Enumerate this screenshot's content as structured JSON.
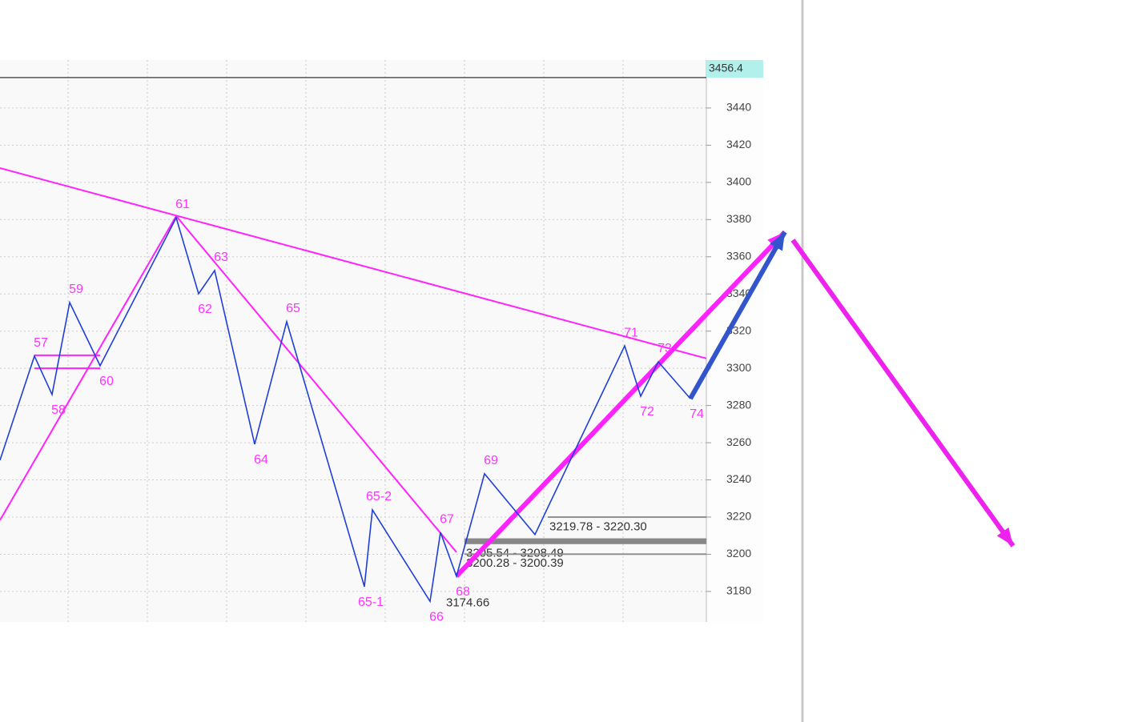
{
  "chart_data": {
    "type": "line",
    "xlim": [
      0,
      220.5
    ],
    "ylim": [
      3163.6,
      3465.8
    ],
    "xticks": [
      21.25,
      46,
      70.75,
      95.5,
      120.25,
      145,
      169.75,
      194.5
    ],
    "yticks": [
      3180,
      3200,
      3220,
      3240,
      3260,
      3280,
      3300,
      3320,
      3340,
      3360,
      3380,
      3400,
      3420,
      3440
    ],
    "grid": true,
    "top_label": 3456.4,
    "series": [
      {
        "color": "#1f3fd8",
        "x": [
          0,
          10.75,
          16.25,
          21.75,
          31.25,
          55,
          62,
          67,
          79.5,
          89.5,
          113.75,
          116.25,
          134.25,
          137.5,
          142.5,
          151.25,
          167,
          195,
          200,
          205.5,
          215.5
        ],
        "values": [
          3250.6,
          3306.6,
          3285.9,
          3335.4,
          3301.4,
          3381.0,
          3340.1,
          3352.6,
          3259.2,
          3325.1,
          3182.6,
          3223.9,
          3174.66,
          3211.8,
          3188.2,
          3243.3,
          3210.6,
          3312.1,
          3285.0,
          3303.5,
          3283.7
        ],
        "labels": [
          null,
          "57",
          "58",
          "59",
          "60",
          "61",
          "62",
          "63",
          "64",
          "65",
          "65-1",
          "65-2",
          "66",
          "67",
          "68",
          "69",
          null,
          "71",
          "72",
          "73",
          "74"
        ],
        "value_labels": [
          null,
          null,
          null,
          null,
          null,
          null,
          null,
          null,
          null,
          null,
          null,
          null,
          "3174.66",
          null,
          null,
          null,
          null,
          null,
          null,
          null,
          null
        ]
      }
    ],
    "trend_lines": [
      {
        "color": "#ff22ff",
        "x": [
          0,
          220.5
        ],
        "values": [
          3407.7,
          3305.3
        ]
      },
      {
        "color": "#ff22ff",
        "x": [
          0,
          55
        ],
        "values": [
          3218.3,
          3381.9
        ]
      },
      {
        "color": "#ff22ff",
        "x": [
          55,
          142.5
        ],
        "values": [
          3381.9,
          3201.1
        ]
      },
      {
        "color": "#ff22ff",
        "x": [
          10.75,
          31.25
        ],
        "values": [
          3307,
          3307
        ]
      },
      {
        "color": "#ff22ff",
        "x": [
          10.75,
          31.25
        ],
        "values": [
          3300,
          3300
        ]
      },
      {
        "color": "#ff22ff",
        "x": [
          142.5,
          245
        ],
        "values": [
          3188.2,
          3373.3
        ],
        "style": "arrow"
      },
      {
        "color": "#3355cc",
        "x": [
          215.5,
          245
        ],
        "values": [
          3283.7,
          3373.3
        ],
        "style": "arrow"
      },
      {
        "color": "#ee22ee",
        "x": [
          247.5,
          316.25
        ],
        "values": [
          3369,
          3204.5
        ],
        "style": "arrow"
      }
    ],
    "levels": [
      {
        "label": "3219.78 - 3220.30",
        "low": 3219.78,
        "high": 3220.3,
        "x": 171
      },
      {
        "label": "3205.54 - 3208.49",
        "low": 3205.54,
        "high": 3208.49,
        "x": 145
      },
      {
        "label": "3200.28 - 3200.39",
        "low": 3200.28,
        "high": 3200.39,
        "x": 145
      }
    ]
  }
}
